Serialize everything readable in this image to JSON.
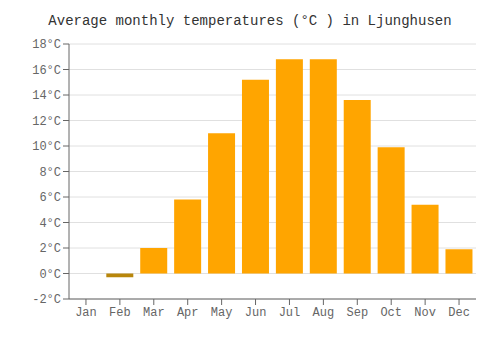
{
  "chart_data": {
    "type": "bar",
    "title": "Average monthly temperatures (°C ) in Ljunghusen",
    "categories": [
      "Jan",
      "Feb",
      "Mar",
      "Apr",
      "May",
      "Jun",
      "Jul",
      "Aug",
      "Sep",
      "Oct",
      "Nov",
      "Dec"
    ],
    "values": [
      0.0,
      -0.3,
      2.0,
      5.8,
      11.0,
      15.2,
      16.8,
      16.8,
      13.6,
      9.9,
      5.4,
      1.9
    ],
    "colors": [
      "#FFA500",
      "#B8860B",
      "#FFA500",
      "#FFA500",
      "#FFA500",
      "#FFA500",
      "#FFA500",
      "#FFA500",
      "#FFA500",
      "#FFA500",
      "#FFA500",
      "#FFA500"
    ],
    "ylim": [
      -2,
      18
    ],
    "yticks": [
      {
        "value": -2,
        "label": "-2°C"
      },
      {
        "value": 0,
        "label": "0°C"
      },
      {
        "value": 2,
        "label": "2°C"
      },
      {
        "value": 4,
        "label": "4°C"
      },
      {
        "value": 6,
        "label": "6°C"
      },
      {
        "value": 8,
        "label": "8°C"
      },
      {
        "value": 10,
        "label": "10°C"
      },
      {
        "value": 12,
        "label": "12°C"
      },
      {
        "value": 14,
        "label": "14°C"
      },
      {
        "value": 16,
        "label": "16°C"
      },
      {
        "value": 18,
        "label": "18°C"
      }
    ],
    "grid": true
  }
}
